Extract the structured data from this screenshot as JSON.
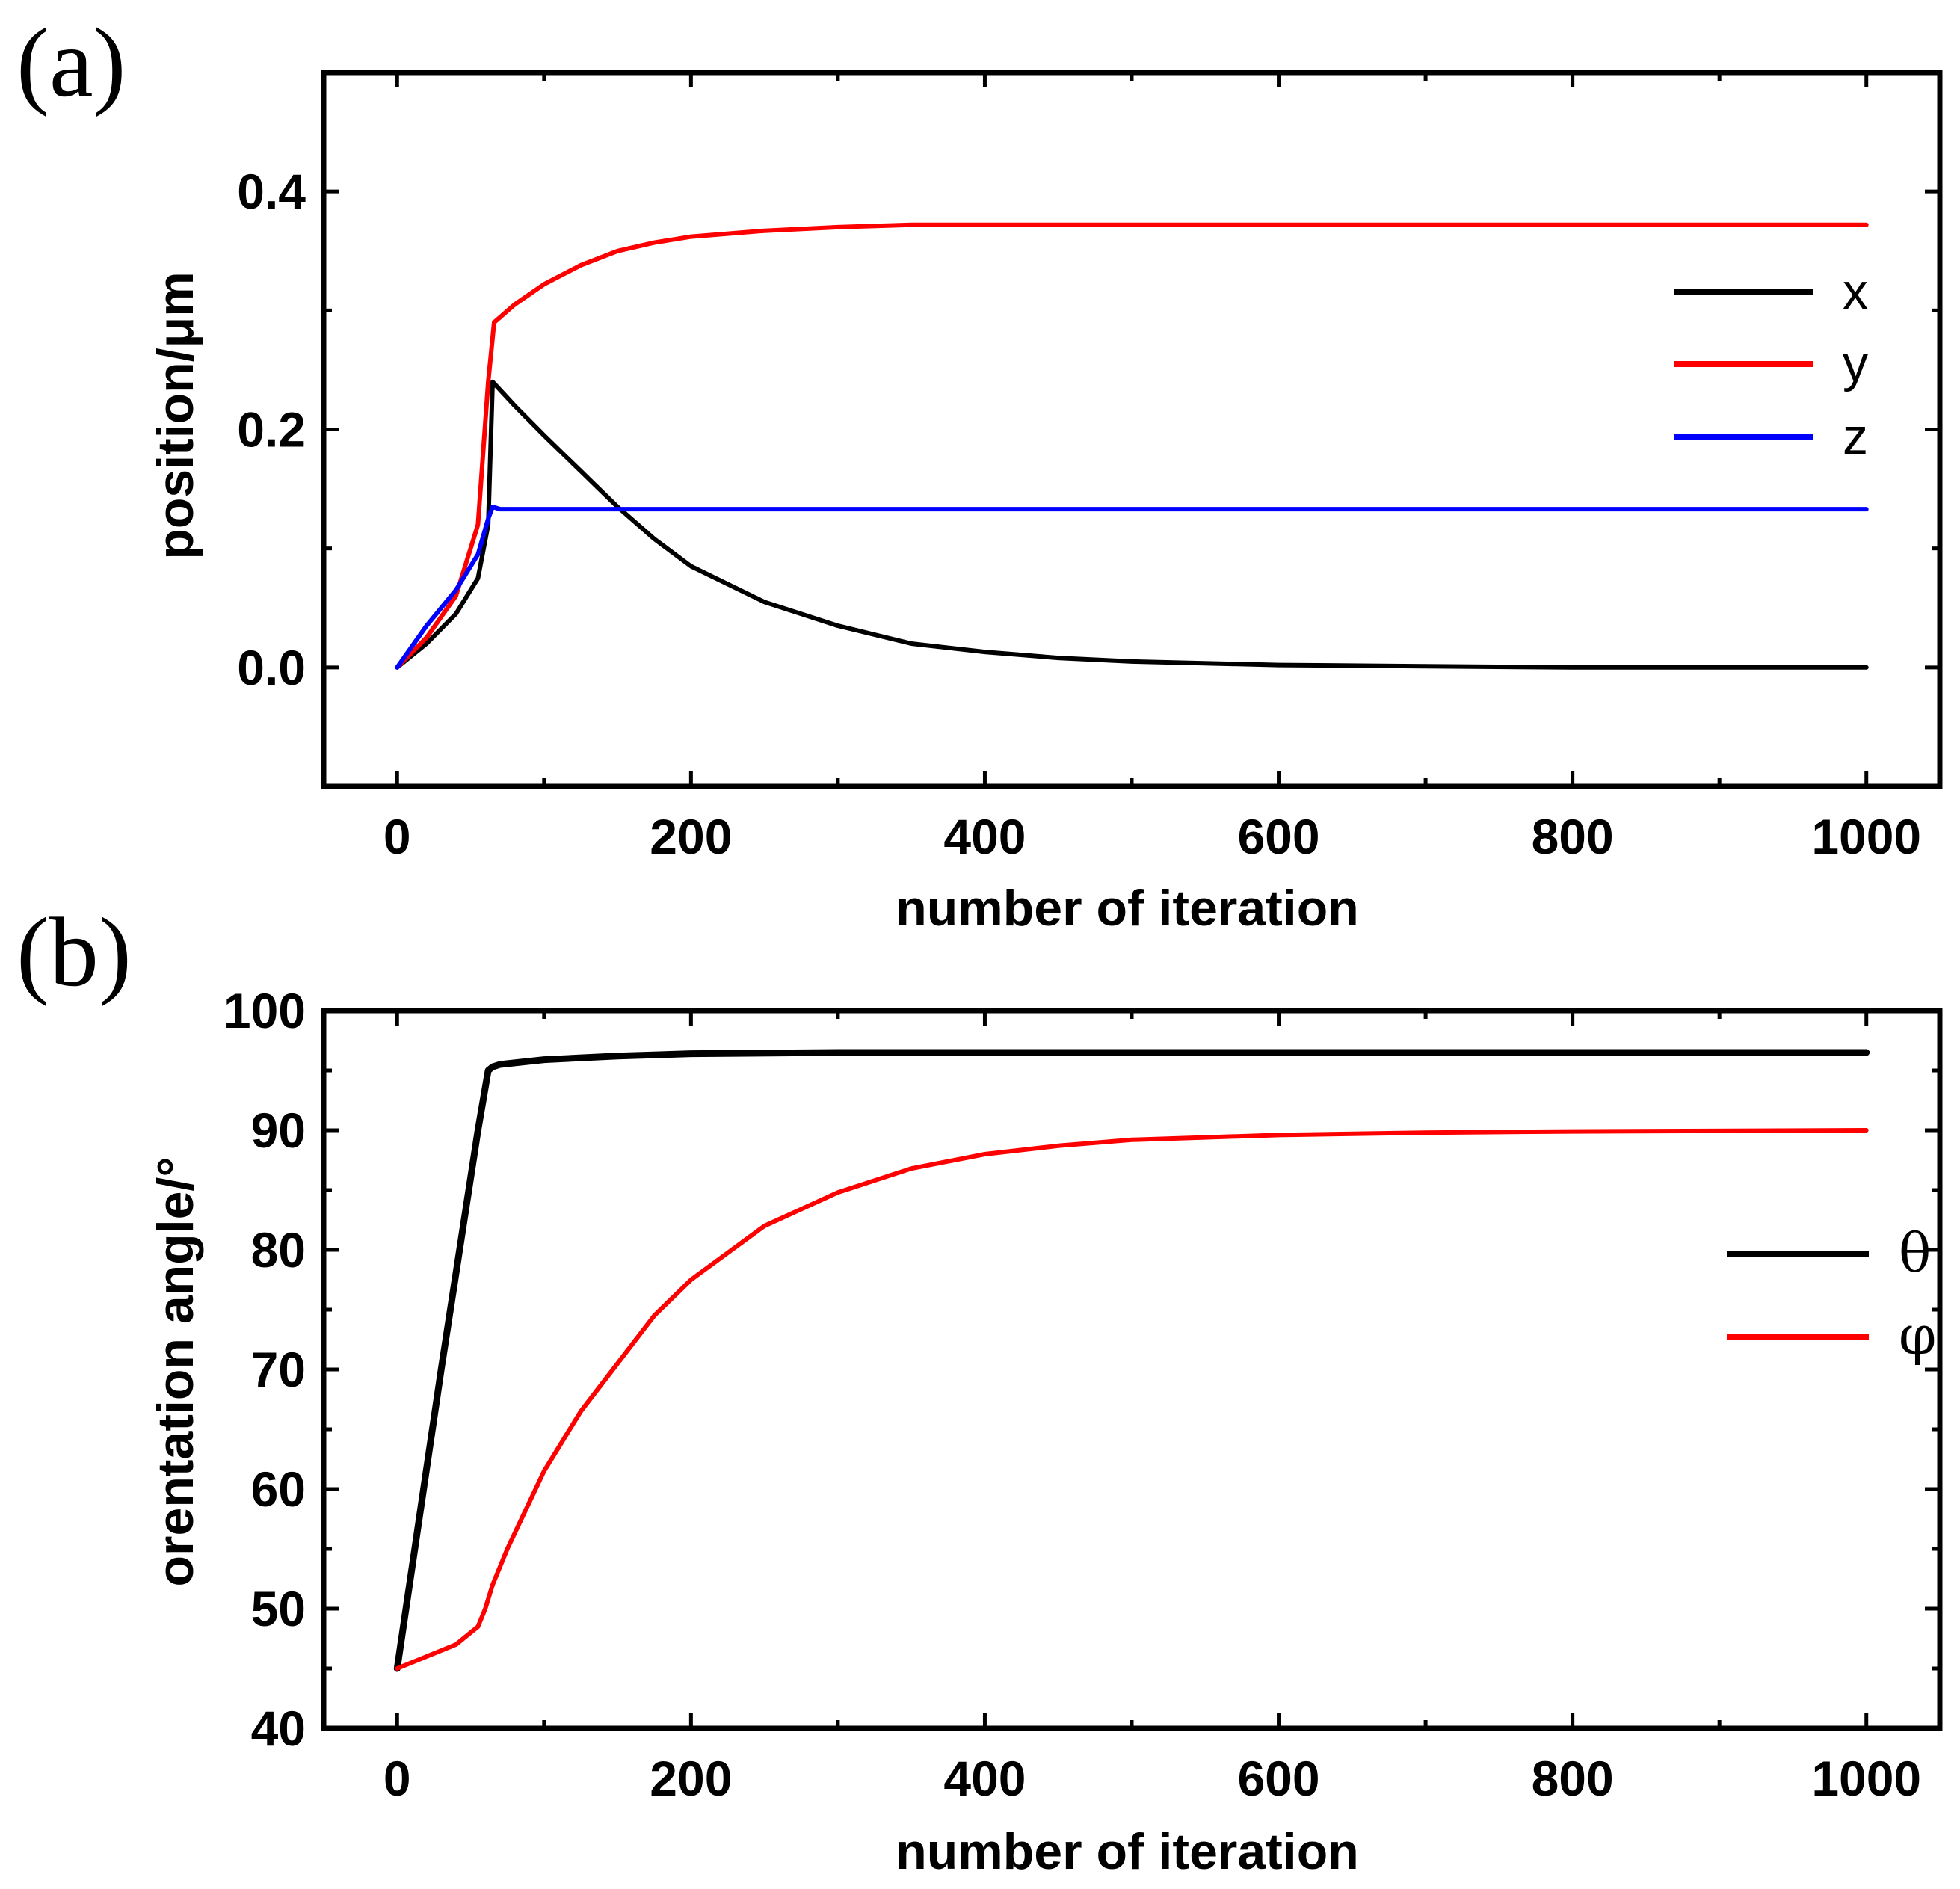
{
  "chart_data": [
    {
      "type": "line",
      "panel_label": "(a)",
      "xlabel": "number of iteration",
      "ylabel": "position/μm",
      "xlim": [
        -50,
        1050
      ],
      "ylim": [
        -0.1,
        0.5
      ],
      "xticks": [
        0,
        200,
        400,
        600,
        800,
        1000
      ],
      "xtick_labels": [
        "0",
        "200",
        "400",
        "600",
        "800",
        "1000"
      ],
      "yticks": [
        0.0,
        0.2,
        0.4
      ],
      "ytick_labels": [
        "0.0",
        "0.2",
        "0.4"
      ],
      "grid": false,
      "legend_position": "right",
      "series": [
        {
          "name": "x",
          "color": "#000000",
          "x": [
            0,
            20,
            40,
            55,
            62,
            65,
            80,
            100,
            125,
            150,
            175,
            200,
            250,
            300,
            350,
            400,
            450,
            500,
            600,
            700,
            800,
            900,
            1000
          ],
          "y": [
            0.0,
            0.02,
            0.045,
            0.075,
            0.12,
            0.24,
            0.22,
            0.195,
            0.165,
            0.135,
            0.108,
            0.085,
            0.055,
            0.035,
            0.02,
            0.013,
            0.008,
            0.005,
            0.002,
            0.001,
            0.0,
            0.0,
            0.0
          ]
        },
        {
          "name": "y",
          "color": "#ff0000",
          "x": [
            0,
            20,
            40,
            55,
            62,
            66,
            80,
            100,
            125,
            150,
            175,
            200,
            250,
            300,
            350,
            400,
            500,
            600,
            800,
            1000
          ],
          "y": [
            0.0,
            0.025,
            0.06,
            0.12,
            0.24,
            0.29,
            0.305,
            0.322,
            0.338,
            0.35,
            0.357,
            0.362,
            0.367,
            0.37,
            0.372,
            0.372,
            0.372,
            0.372,
            0.372,
            0.372
          ]
        },
        {
          "name": "z",
          "color": "#0000ff",
          "x": [
            0,
            20,
            40,
            55,
            62,
            65,
            70,
            100,
            200,
            400,
            600,
            800,
            1000
          ],
          "y": [
            0.0,
            0.035,
            0.065,
            0.095,
            0.125,
            0.135,
            0.133,
            0.133,
            0.133,
            0.133,
            0.133,
            0.133,
            0.133
          ]
        }
      ]
    },
    {
      "type": "line",
      "panel_label": "(b)",
      "xlabel": "number of iteration",
      "ylabel": "orentation angle/°",
      "xlim": [
        -50,
        1050
      ],
      "ylim": [
        40,
        100
      ],
      "xticks": [
        0,
        200,
        400,
        600,
        800,
        1000
      ],
      "xtick_labels": [
        "0",
        "200",
        "400",
        "600",
        "800",
        "1000"
      ],
      "yticks": [
        40,
        50,
        60,
        70,
        80,
        90,
        100
      ],
      "ytick_labels": [
        "40",
        "50",
        "60",
        "70",
        "80",
        "90",
        "100"
      ],
      "grid": false,
      "legend_position": "right",
      "series": [
        {
          "name": "θ",
          "color": "#000000",
          "x": [
            0,
            30,
            55,
            62,
            65,
            70,
            100,
            150,
            200,
            300,
            500,
            700,
            1000
          ],
          "y": [
            45,
            70,
            90,
            95,
            95.3,
            95.5,
            95.9,
            96.2,
            96.4,
            96.5,
            96.5,
            96.5,
            96.5
          ]
        },
        {
          "name": "φ",
          "color": "#ff0000",
          "x": [
            0,
            20,
            40,
            55,
            60,
            65,
            75,
            100,
            125,
            150,
            175,
            200,
            250,
            300,
            350,
            400,
            450,
            500,
            600,
            700,
            800,
            1000
          ],
          "y": [
            45,
            46,
            47,
            48.5,
            50,
            52,
            55,
            61.5,
            66.5,
            70.5,
            74.5,
            77.5,
            82,
            84.8,
            86.8,
            88,
            88.7,
            89.2,
            89.6,
            89.8,
            89.9,
            90
          ]
        }
      ]
    }
  ]
}
